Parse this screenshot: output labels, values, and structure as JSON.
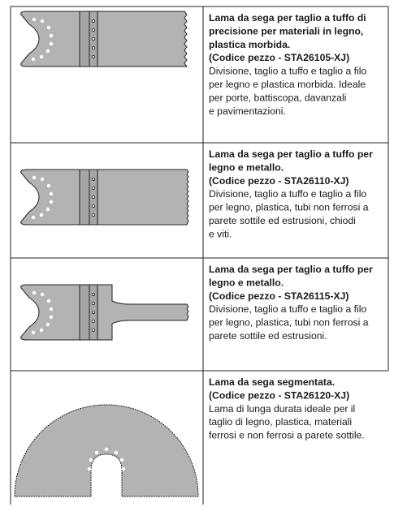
{
  "table": {
    "rows": [
      {
        "title_lines": [
          "Lama da sega per taglio a tuffo di",
          "precisione per materiali in legno,",
          "plastica morbida."
        ],
        "code": "(Codice pezzo - STA26105-XJ)",
        "description_lines": [
          "Divisione, taglio a tuffo e taglio a filo",
          "per legno e plastica morbida. Ideale",
          "per porte, battiscopa, davanzali",
          "e pavimentazioni."
        ]
      },
      {
        "title_lines": [
          "Lama da sega per taglio a tuffo per",
          "legno e metallo."
        ],
        "code": "(Codice pezzo - STA26110-XJ)",
        "description_lines": [
          "Divisione, taglio a tuffo e taglio a filo",
          "per legno, plastica, tubi non ferrosi a",
          "parete sottile ed estrusioni, chiodi",
          "e viti."
        ]
      },
      {
        "title_lines": [
          "Lama da sega per taglio a tuffo per",
          "legno e metallo."
        ],
        "code": "(Codice pezzo - STA26115-XJ)",
        "description_lines": [
          "Divisione, taglio a tuffo e taglio a filo",
          "per legno, plastica, tubi non ferrosi a",
          "parete sottile ed estrusioni."
        ]
      },
      {
        "title_lines": [
          "Lama da sega segmentata."
        ],
        "code": "(Codice pezzo - STA26120-XJ)",
        "description_lines": [
          "Lama di lunga durata ideale per il",
          "taglio di legno, plastica, materiali",
          "ferrosi e non ferrosi a parete sottile."
        ]
      }
    ]
  }
}
